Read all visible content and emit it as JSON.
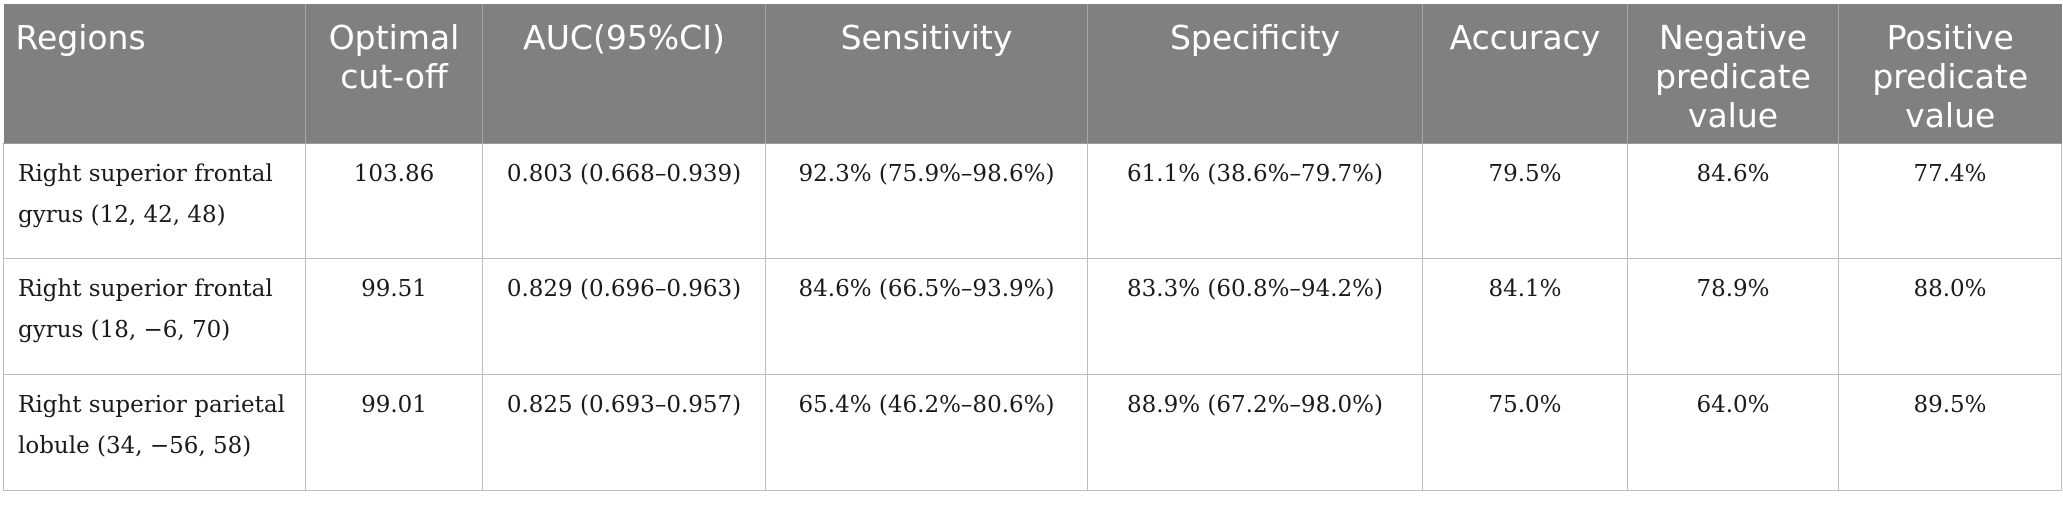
{
  "table": {
    "headers": [
      "Regions",
      "Optimal cut-off",
      "AUC(95%CI)",
      "Sensitivity",
      "Specificity",
      "Accuracy",
      "Negative predicate value",
      "Positive predicate value"
    ],
    "rows": [
      [
        "Right superior frontal gyrus (12, 42, 48)",
        "103.86",
        "0.803 (0.668–0.939)",
        "92.3% (75.9%–98.6%)",
        "61.1% (38.6%–79.7%)",
        "79.5%",
        "84.6%",
        "77.4%"
      ],
      [
        "Right superior frontal gyrus (18, −6, 70)",
        "99.51",
        "0.829 (0.696–0.963)",
        "84.6% (66.5%–93.9%)",
        "83.3% (60.8%–94.2%)",
        "84.1%",
        "78.9%",
        "88.0%"
      ],
      [
        "Right superior parietal lobule (34, −56, 58)",
        "99.01",
        "0.825 (0.693–0.957)",
        "65.4% (46.2%–80.6%)",
        "88.9% (67.2%–98.0%)",
        "75.0%",
        "64.0%",
        "89.5%"
      ]
    ]
  },
  "colors": {
    "header_background": "#808080",
    "header_text": "#ffffff",
    "grid_line": "#bdbdbd"
  }
}
